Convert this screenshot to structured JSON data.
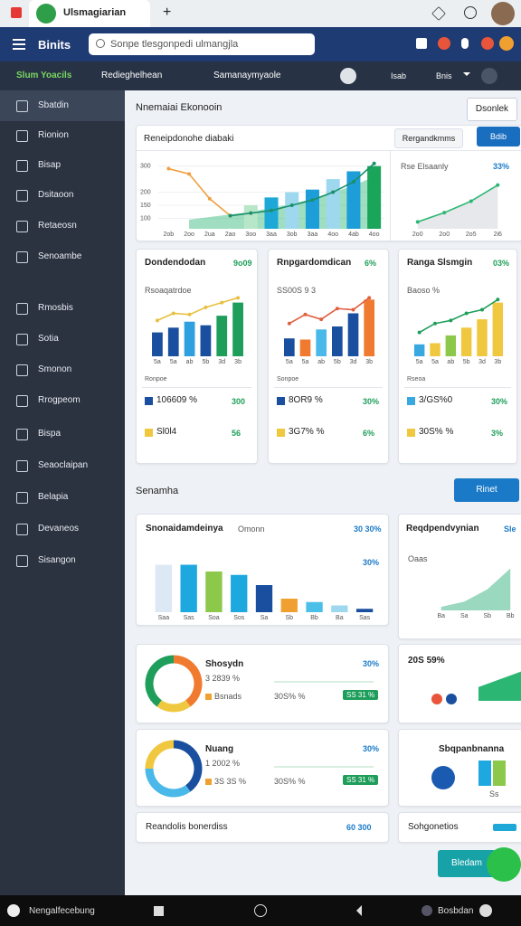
{
  "browser": {
    "tab_title": "Ulsmagiarian",
    "new_tab": "+"
  },
  "header": {
    "title": "Binits",
    "search": "Sonpe tlesgonpedi ulmangjla"
  },
  "nav": {
    "primary": "Slum Yoacils",
    "links": [
      "Redieghelhean",
      "Samanaymyaole"
    ],
    "right": [
      "Isab",
      "Bnis"
    ]
  },
  "sidebar": {
    "items": [
      "Sbatdin",
      "Rionion",
      "Bisap",
      "Dsitaoon",
      "Retaeosn",
      "Senoambe"
    ],
    "items2": [
      "Rmosbis",
      "Sotia",
      "Smonon",
      "Rrogpeom",
      "Bispa",
      "Seaoclaipan",
      "Belapia",
      "Devaneos",
      "Sisangon"
    ]
  },
  "page": {
    "title": "Nnemaiai Ekonooin",
    "action": "Dsonlek"
  },
  "overview": {
    "title": "Reneipdonohe diabaki",
    "filter": "Rergandkmms",
    "button": "Bdib",
    "chart_data": {
      "type": "bar",
      "categories": [
        "2ob",
        "2oo",
        "2ua",
        "2ao",
        "3oo",
        "3aa",
        "3ob",
        "3aa",
        "4oo",
        "4ab",
        "4oo"
      ],
      "ylim": [
        60,
        330
      ],
      "yticks": [
        100,
        150,
        200,
        300
      ],
      "series": [
        {
          "type": "area",
          "color": "#2bb673",
          "values": [
            null,
            95,
            105,
            115,
            125,
            140,
            155,
            175,
            200,
            225,
            260
          ]
        },
        {
          "type": "bar",
          "colors": [
            "#b8e6c8",
            "#1ea8d8",
            "#9ed8ef",
            "#1e9ed8",
            "#9ed8ef",
            "#1e9ed8",
            "#1aa55a",
            "#2bb673"
          ],
          "values": [
            null,
            null,
            null,
            null,
            150,
            180,
            200,
            210,
            250,
            280,
            300
          ]
        },
        {
          "type": "line",
          "color": "#f0a040",
          "values": [
            290,
            270,
            175,
            110,
            null,
            null,
            null,
            null,
            null,
            null,
            null
          ]
        },
        {
          "type": "line",
          "color": "#1a8f6a",
          "values": [
            null,
            null,
            null,
            110,
            120,
            130,
            150,
            170,
            200,
            240,
            310
          ]
        }
      ]
    },
    "trend": {
      "title": "Rse Elsaanly",
      "badge": "33%",
      "chart_data": {
        "type": "line",
        "categories": [
          "2o0",
          "2o0",
          "2o5",
          "2i6"
        ],
        "ylim": [
          80,
          300
        ],
        "series": [
          {
            "type": "area",
            "color": "#c8ccd2",
            "values": [
              110,
              150,
              200,
              270
            ]
          },
          {
            "type": "line",
            "color": "#2bb673",
            "values": [
              110,
              150,
              200,
              270
            ]
          }
        ]
      }
    }
  },
  "cards": [
    {
      "title": "Dondendodan",
      "badge": "9o09",
      "subtitle": "Rsoaqatrdoe",
      "note": "Ronpoe",
      "chart_data": {
        "type": "bar",
        "categories": [
          "5a",
          "5a",
          "ab",
          "5b",
          "3d",
          "3b"
        ],
        "ylim": [
          0,
          100
        ],
        "series": [
          {
            "type": "bar",
            "colors": [
              "#1a4fa0",
              "#1a4fa0",
              "#2ea0e0",
              "#1a4fa0",
              "#1e9e5a",
              "#1e9e5a"
            ],
            "values": [
              40,
              48,
              58,
              52,
              68,
              90
            ]
          },
          {
            "type": "line",
            "color": "#e8c040",
            "values": [
              60,
              72,
              70,
              82,
              90,
              98
            ]
          }
        ]
      },
      "stats": [
        {
          "value": "106609 %",
          "pct": "300"
        },
        {
          "value": "Sl0l4",
          "pct": "56"
        }
      ]
    },
    {
      "title": "Rnpgardomdican",
      "badge": "6%",
      "subtitle": "SS00S 9 3",
      "note": "Sonpoe",
      "chart_data": {
        "type": "bar",
        "categories": [
          "5a",
          "5a",
          "ab",
          "5b",
          "3d",
          "3b"
        ],
        "ylim": [
          0,
          100
        ],
        "series": [
          {
            "type": "bar",
            "colors": [
              "#1a4fa0",
              "#f07a30",
              "#4ab8e8",
              "#1a4fa0",
              "#1a4fa0",
              "#f07a30"
            ],
            "values": [
              30,
              28,
              45,
              50,
              72,
              95
            ]
          },
          {
            "type": "line",
            "color": "#e06040",
            "values": [
              55,
              70,
              62,
              80,
              78,
              98
            ]
          }
        ]
      },
      "stats": [
        {
          "value": "8OR9 %",
          "pct": "30%"
        },
        {
          "value": "3G7% %",
          "pct": "6%"
        }
      ]
    },
    {
      "title": "Ranga Slsmgin",
      "badge": "03%",
      "subtitle": "Baoso %",
      "note": "Rseoa",
      "chart_data": {
        "type": "bar",
        "categories": [
          "5a",
          "5a",
          "ab",
          "5b",
          "3d",
          "3b"
        ],
        "ylim": [
          0,
          100
        ],
        "series": [
          {
            "type": "bar",
            "colors": [
              "#3aa8e0",
              "#f0c840",
              "#8cc84a",
              "#f0c840",
              "#f0c840",
              "#f0c840"
            ],
            "values": [
              20,
              22,
              35,
              48,
              62,
              90
            ]
          },
          {
            "type": "line",
            "color": "#1e9e5a",
            "values": [
              40,
              55,
              60,
              72,
              78,
              95
            ]
          }
        ]
      },
      "stats": [
        {
          "value": "3/GS%0",
          "pct": "30%"
        },
        {
          "value": "30S% %",
          "pct": "3%"
        }
      ]
    }
  ],
  "section": {
    "title": "Senamha",
    "button": "Rinet"
  },
  "distribution": {
    "title": "Snonaidamdeinya",
    "subtitle": "Omonn",
    "badge": "30 30%",
    "note": "30%",
    "chart_data": {
      "type": "bar",
      "categories": [
        "Saa",
        "Sas",
        "Soa",
        "Sos",
        "Sa",
        "Sb",
        "Bb",
        "Ba",
        "Sas"
      ],
      "ylim": [
        0,
        160
      ],
      "series": [
        {
          "type": "bar",
          "colors": [
            "#dde8f5",
            "#1ea8e0",
            "#8cc84a",
            "#1ea8e0",
            "#1a4fa0",
            "#f0a030",
            "#4ac0e8",
            "#9ed8ef",
            "#1a4fa0"
          ],
          "values": [
            140,
            140,
            120,
            110,
            80,
            40,
            30,
            20,
            10
          ]
        }
      ]
    }
  },
  "growth": {
    "title": "Reqdpendvynian",
    "badge": "Sle",
    "subtitle": "Oaas",
    "chart_data": {
      "type": "line",
      "categories": [
        "Ba",
        "Sa",
        "Sb",
        "Bb"
      ],
      "ylim": [
        0,
        150
      ],
      "series": [
        {
          "type": "area",
          "color": "#1fa870",
          "values": [
            10,
            25,
            60,
            120
          ]
        }
      ]
    }
  },
  "donuts": [
    {
      "title": "Shosydn",
      "value": "3 2839 %",
      "legend": "Bsnads",
      "stat": "30S% %",
      "tag": "SS 31 %",
      "pct": "30%",
      "chart_data": {
        "type": "pie",
        "values": [
          40,
          20,
          40
        ],
        "colors": [
          "#f07a30",
          "#f0c840",
          "#1e9e5a"
        ]
      }
    },
    {
      "title": "Nuang",
      "value": "1 2002 %",
      "legend": "3S 3S %",
      "stat": "30S% %",
      "tag": "SS 31 %",
      "pct": "30%",
      "chart_data": {
        "type": "pie",
        "values": [
          40,
          35,
          25
        ],
        "colors": [
          "#1a4fa0",
          "#4ab8e8",
          "#f0c840"
        ]
      }
    }
  ],
  "side_cards": [
    {
      "value": "20S 59%"
    },
    {
      "title": "Sbqpanbnanna",
      "note": "Ss"
    }
  ],
  "footer_cards": [
    {
      "title": "Reandolis bonerdiss",
      "value": "60 300"
    },
    {
      "title": "Sohgonetios"
    }
  ],
  "fab": {
    "label": "Bledam"
  },
  "system": {
    "left": "Nengalfecebung",
    "right": "Bosbdan"
  }
}
